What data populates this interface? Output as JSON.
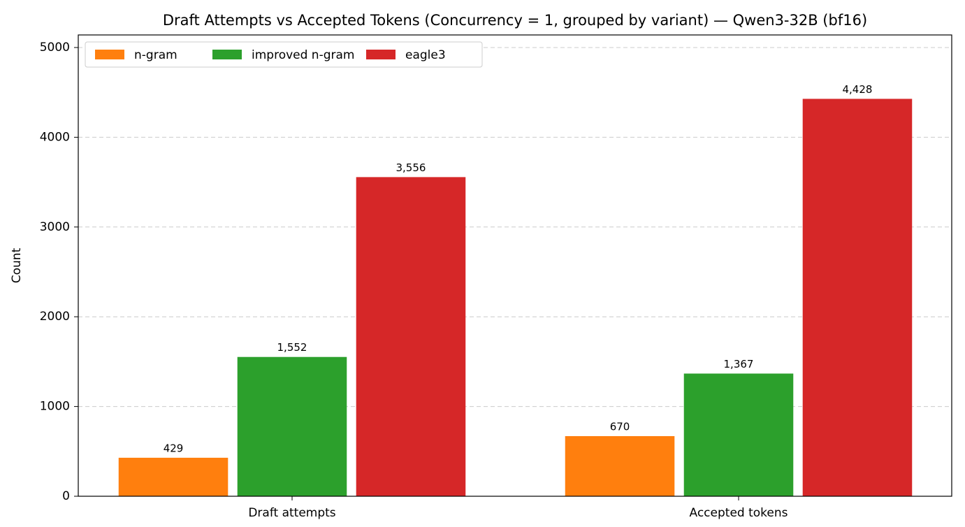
{
  "chart_data": {
    "type": "bar",
    "title": "Draft Attempts vs Accepted Tokens (Concurrency = 1, grouped by variant) — Qwen3-32B (bf16)",
    "ylabel": "Count",
    "categories": [
      "Draft attempts",
      "Accepted tokens"
    ],
    "series": [
      {
        "name": "n-gram",
        "color": "#ff7f0e",
        "values": [
          429,
          670
        ],
        "value_labels": [
          "429",
          "670"
        ]
      },
      {
        "name": "improved n-gram",
        "color": "#2ca02c",
        "values": [
          1552,
          1367
        ],
        "value_labels": [
          "1,552",
          "1,367"
        ]
      },
      {
        "name": "eagle3",
        "color": "#d62728",
        "values": [
          3556,
          4428
        ],
        "value_labels": [
          "3,556",
          "4,428"
        ]
      }
    ],
    "ylim": [
      0,
      5140
    ],
    "yticks": [
      0,
      1000,
      2000,
      3000,
      4000,
      5000
    ],
    "grid": true,
    "legend": "upper-left"
  }
}
